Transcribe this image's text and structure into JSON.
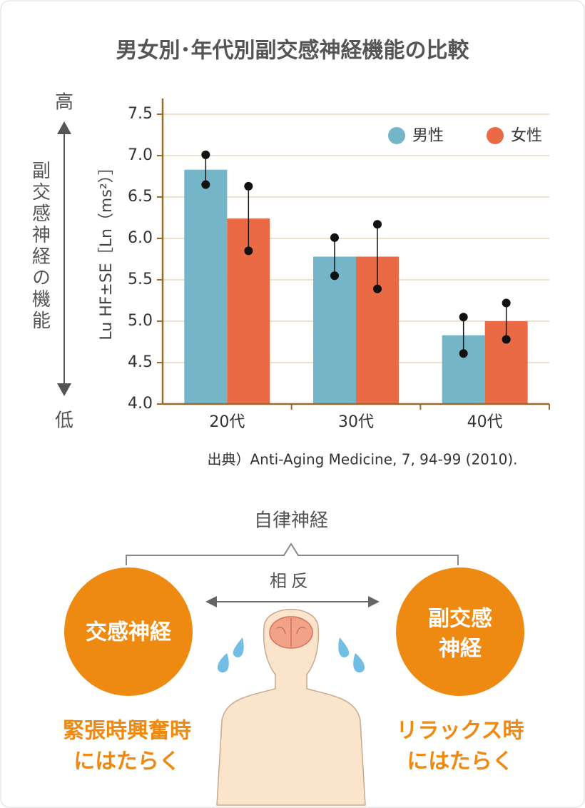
{
  "chart_data": {
    "type": "bar",
    "title": "男女別･年代別副交感神経機能の比較",
    "y_label": "Lu HF±SE［Ln（ms²）］",
    "side_label": "副交感神経の機能",
    "side_high": "高",
    "side_low": "低",
    "source": "出典）Anti-Aging Medicine, 7, 94-99 (2010).",
    "categories": [
      "20代",
      "30代",
      "40代"
    ],
    "series": [
      {
        "name": "男性",
        "color": "#74b6c8",
        "values": [
          6.83,
          5.78,
          4.83
        ],
        "errors": [
          0.18,
          0.23,
          0.22
        ]
      },
      {
        "name": "女性",
        "color": "#ea6a45",
        "values": [
          6.24,
          5.78,
          5.0
        ],
        "errors": [
          0.39,
          0.39,
          0.22
        ]
      }
    ],
    "ylim": [
      4.0,
      7.5
    ],
    "yticks": [
      {
        "value": 4.0,
        "label": "4.0"
      },
      4.5,
      {
        "value": 5.0,
        "label": "5.0"
      },
      5.5,
      {
        "value": 6.0,
        "label": "6.0"
      },
      6.5,
      {
        "value": 7.0,
        "label": "7.0"
      },
      7.5
    ],
    "grid": true,
    "legend": "top-right"
  },
  "diagram": {
    "title": "自律神経",
    "relation": "相反",
    "left": {
      "label": "交感神経",
      "caption": [
        "緊張時興奮時",
        "にはたらく"
      ]
    },
    "right": {
      "label": [
        "副交感",
        "神経"
      ],
      "caption": [
        "リラックス時",
        "にはたらく"
      ]
    }
  }
}
